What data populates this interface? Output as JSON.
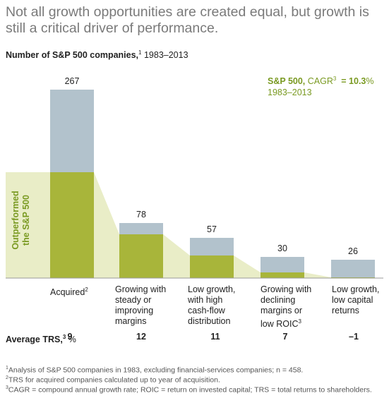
{
  "headline": "Not all growth opportunities are created equal, but growth is still a critical driver of performance.",
  "subtitle": {
    "bold": "Number of S&P 500 companies,",
    "sup": "1",
    "rest": " 1983–2013"
  },
  "legend": {
    "name": "S&P 500,",
    "metric": " CAGR",
    "sup": "3",
    "value": "  = 10.3",
    "unit": "%",
    "period": "1983–2013"
  },
  "side_label": [
    "Outperformed",
    "the S&P 500"
  ],
  "trs_label": {
    "bold": "Average TRS,",
    "sup": "3",
    "unit": " %"
  },
  "colors": {
    "total": "#b2c2cc",
    "outperformed": "#a8b53a",
    "band": "#e9edc7",
    "legend": "#7a9a22"
  },
  "chart_data": {
    "type": "bar",
    "title": "Number of S&P 500 companies, 1983–2013",
    "categories": [
      {
        "lines": [
          "Acquired"
        ],
        "sup": "2"
      },
      {
        "lines": [
          "Growing with",
          "steady or",
          "improving",
          "margins"
        ],
        "sup": ""
      },
      {
        "lines": [
          "Low growth,",
          "with high",
          "cash-flow",
          "distribution"
        ],
        "sup": ""
      },
      {
        "lines": [
          "Growing with",
          "declining",
          "margins or",
          "low ROIC"
        ],
        "sup": "3"
      },
      {
        "lines": [
          "Low growth,",
          "low capital",
          "returns"
        ],
        "sup": ""
      }
    ],
    "series": [
      {
        "name": "Number of companies",
        "values": [
          267,
          78,
          57,
          30,
          26
        ]
      },
      {
        "name": "Outperformed the S&P 500",
        "values": [
          150,
          62,
          32,
          8,
          1
        ]
      }
    ],
    "total_labels": [
      "267",
      "78",
      "57",
      "30",
      "26"
    ],
    "average_trs": [
      "9",
      "12",
      "11",
      "7",
      "–1"
    ],
    "ylim": [
      0,
      267
    ]
  },
  "footnotes": [
    {
      "sup": "1",
      "text": "Analysis of S&P 500 companies in 1983, excluding financial-services companies; n = 458."
    },
    {
      "sup": "2",
      "text": "TRS for acquired companies calculated up to year of acquisition."
    },
    {
      "sup": "3",
      "text": "CAGR = compound annual growth rate; ROIC = return on invested capital; TRS = total returns to shareholders."
    }
  ]
}
